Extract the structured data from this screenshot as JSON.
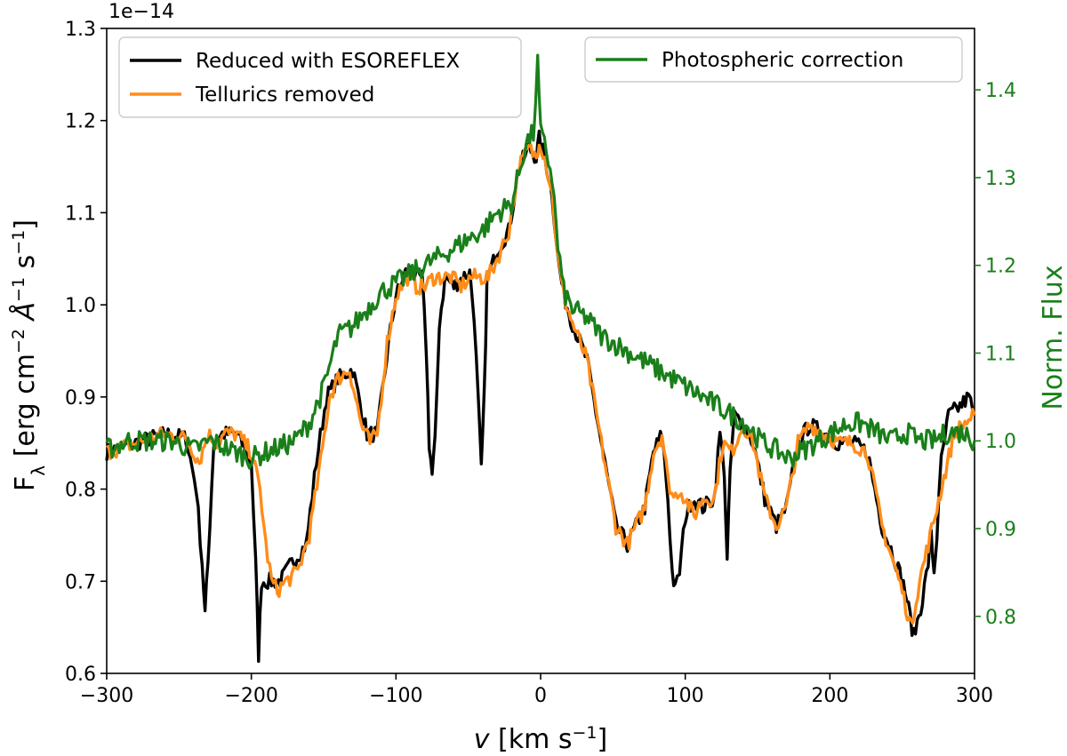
{
  "chart_data": {
    "type": "line",
    "xlabel_symbol": "v",
    "xlabel_rest": " [km s",
    "xlabel_exp": "−1",
    "xlabel_end": "]",
    "ylabel_left_main": "F",
    "ylabel_left_sub": "λ",
    "ylabel_left_units": " [erg cm",
    "ylabel_left_exp1": "−2",
    "ylabel_left_angstrom": " Å",
    "ylabel_left_exp2": "−1",
    "ylabel_left_s": " s",
    "ylabel_left_exp3": "−1",
    "ylabel_left_end": "]",
    "ylabel_right": "Norm. Flux",
    "offset_text": "1e−14",
    "xlim": [
      -300,
      300
    ],
    "ylim_left": [
      0.6,
      1.3
    ],
    "ylim_right": [
      0.735,
      1.47
    ],
    "x_ticks": [
      -300,
      -200,
      -100,
      0,
      100,
      200,
      300
    ],
    "x_tick_labels": [
      "−300",
      "−200",
      "−100",
      "0",
      "100",
      "200",
      "300"
    ],
    "y_left_ticks": [
      0.6,
      0.7,
      0.8,
      0.9,
      1.0,
      1.1,
      1.2,
      1.3
    ],
    "y_left_tick_labels": [
      "0.6",
      "0.7",
      "0.8",
      "0.9",
      "1.0",
      "1.1",
      "1.2",
      "1.3"
    ],
    "y_right_ticks": [
      0.8,
      0.9,
      1.0,
      1.1,
      1.2,
      1.3,
      1.4
    ],
    "y_right_tick_labels": [
      "0.8",
      "0.9",
      "1.0",
      "1.1",
      "1.2",
      "1.3",
      "1.4"
    ],
    "legend_left": [
      {
        "label": "Reduced with ESOREFLEX",
        "color": "#000000"
      },
      {
        "label": "Tellurics removed",
        "color": "#ff8c1a"
      }
    ],
    "legend_right": [
      {
        "label": "Photospheric correction",
        "color": "#1a7f1a"
      }
    ],
    "series": [
      {
        "name": "Reduced with ESOREFLEX",
        "axis": "left",
        "color": "#000000",
        "x": [
          -300,
          -280,
          -260,
          -245,
          -238,
          -234,
          -232,
          -230,
          -226,
          -220,
          -210,
          -200,
          -197,
          -195,
          -193,
          -190,
          -186,
          -180,
          -172,
          -162,
          -155,
          -148,
          -140,
          -130,
          -120,
          -113,
          -105,
          -100,
          -92,
          -86,
          -82,
          -79,
          -77,
          -75,
          -73,
          -70,
          -66,
          -60,
          -54,
          -49,
          -46,
          -43,
          -41,
          -39,
          -37,
          -34,
          -30,
          -22,
          -15,
          -8,
          -3,
          -1,
          3,
          8,
          12,
          16,
          22,
          32,
          42,
          52,
          60,
          66,
          72,
          78,
          84,
          88,
          91,
          93,
          96,
          100,
          105,
          112,
          120,
          124,
          127,
          129,
          131,
          134,
          140,
          147,
          155,
          163,
          170,
          178,
          186,
          196,
          206,
          216,
          226,
          236,
          246,
          252,
          258,
          264,
          268,
          270,
          272,
          274,
          277,
          282,
          290,
          296,
          300
        ],
        "y": [
          0.84,
          0.85,
          0.86,
          0.855,
          0.8,
          0.72,
          0.665,
          0.72,
          0.85,
          0.86,
          0.86,
          0.83,
          0.72,
          0.62,
          0.7,
          0.7,
          0.7,
          0.7,
          0.72,
          0.74,
          0.83,
          0.9,
          0.92,
          0.93,
          0.86,
          0.86,
          0.96,
          1.01,
          1.04,
          1.03,
          1.03,
          0.95,
          0.85,
          0.815,
          0.85,
          0.98,
          1.03,
          1.02,
          1.03,
          1.035,
          0.99,
          0.89,
          0.82,
          0.9,
          1.03,
          1.04,
          1.06,
          1.08,
          1.15,
          1.17,
          1.16,
          1.18,
          1.16,
          1.12,
          1.05,
          1.01,
          0.98,
          0.94,
          0.85,
          0.76,
          0.74,
          0.76,
          0.78,
          0.84,
          0.86,
          0.79,
          0.71,
          0.69,
          0.71,
          0.77,
          0.79,
          0.78,
          0.79,
          0.86,
          0.82,
          0.72,
          0.82,
          0.88,
          0.87,
          0.85,
          0.79,
          0.76,
          0.78,
          0.85,
          0.87,
          0.86,
          0.85,
          0.85,
          0.84,
          0.76,
          0.72,
          0.69,
          0.64,
          0.68,
          0.72,
          0.75,
          0.71,
          0.75,
          0.83,
          0.88,
          0.89,
          0.9,
          0.88
        ]
      },
      {
        "name": "Tellurics removed",
        "axis": "left",
        "color": "#ff8c1a",
        "x": [
          -300,
          -280,
          -260,
          -245,
          -236,
          -230,
          -224,
          -218,
          -210,
          -200,
          -194,
          -190,
          -186,
          -182,
          -176,
          -168,
          -160,
          -152,
          -146,
          -140,
          -132,
          -124,
          -118,
          -113,
          -106,
          -100,
          -92,
          -86,
          -80,
          -74,
          -68,
          -62,
          -55,
          -48,
          -42,
          -36,
          -30,
          -22,
          -15,
          -8,
          -3,
          -1,
          3,
          8,
          12,
          16,
          22,
          32,
          42,
          52,
          60,
          66,
          72,
          78,
          84,
          88,
          92,
          96,
          100,
          106,
          112,
          120,
          126,
          132,
          140,
          147,
          155,
          163,
          170,
          178,
          186,
          196,
          206,
          216,
          226,
          236,
          244,
          250,
          256,
          262,
          268,
          274,
          280,
          286,
          292,
          300
        ],
        "y": [
          0.84,
          0.85,
          0.86,
          0.855,
          0.83,
          0.86,
          0.85,
          0.86,
          0.86,
          0.84,
          0.8,
          0.74,
          0.7,
          0.69,
          0.7,
          0.71,
          0.75,
          0.83,
          0.9,
          0.92,
          0.93,
          0.87,
          0.85,
          0.86,
          0.96,
          1.01,
          1.03,
          1.02,
          1.02,
          1.03,
          1.03,
          1.03,
          1.02,
          1.03,
          1.03,
          1.03,
          1.05,
          1.08,
          1.15,
          1.17,
          1.16,
          1.18,
          1.16,
          1.12,
          1.05,
          1.01,
          0.98,
          0.94,
          0.85,
          0.76,
          0.74,
          0.76,
          0.78,
          0.84,
          0.86,
          0.81,
          0.79,
          0.8,
          0.79,
          0.77,
          0.79,
          0.79,
          0.85,
          0.84,
          0.87,
          0.85,
          0.79,
          0.76,
          0.78,
          0.85,
          0.87,
          0.86,
          0.85,
          0.85,
          0.84,
          0.76,
          0.72,
          0.69,
          0.65,
          0.7,
          0.74,
          0.78,
          0.82,
          0.86,
          0.87,
          0.88
        ]
      },
      {
        "name": "Photospheric correction",
        "axis": "right",
        "color": "#1a7f1a",
        "x": [
          -300,
          -285,
          -270,
          -255,
          -240,
          -228,
          -215,
          -200,
          -185,
          -170,
          -160,
          -150,
          -140,
          -130,
          -120,
          -110,
          -100,
          -90,
          -80,
          -70,
          -60,
          -50,
          -40,
          -30,
          -20,
          -10,
          -5,
          -2,
          0,
          4,
          8,
          12,
          16,
          22,
          32,
          42,
          52,
          62,
          72,
          82,
          92,
          102,
          112,
          122,
          132,
          142,
          152,
          162,
          172,
          182,
          192,
          202,
          212,
          222,
          232,
          242,
          252,
          262,
          272,
          282,
          292,
          300
        ],
        "y": [
          0.99,
          1.0,
          1.0,
          1.0,
          0.99,
          1.0,
          0.99,
          0.98,
          0.99,
          1.0,
          1.02,
          1.06,
          1.12,
          1.13,
          1.15,
          1.17,
          1.18,
          1.19,
          1.2,
          1.21,
          1.22,
          1.23,
          1.24,
          1.26,
          1.27,
          1.34,
          1.35,
          1.43,
          1.35,
          1.33,
          1.3,
          1.22,
          1.17,
          1.15,
          1.14,
          1.12,
          1.11,
          1.1,
          1.09,
          1.08,
          1.07,
          1.06,
          1.05,
          1.04,
          1.03,
          1.02,
          1.0,
          0.99,
          0.98,
          0.99,
          1.0,
          1.01,
          1.02,
          1.02,
          1.01,
          1.0,
          1.01,
          1.0,
          1.0,
          1.01,
          1.01,
          1.0
        ]
      }
    ]
  }
}
